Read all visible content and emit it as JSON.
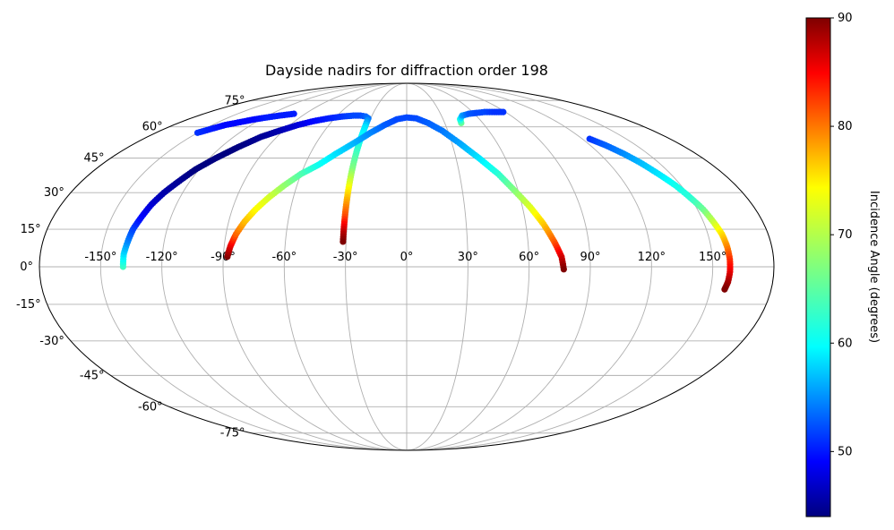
{
  "chart_data": {
    "type": "scatter",
    "projection": "mollweide",
    "title": "Dayside nadirs for diffraction order 198",
    "x_tick_labels": [
      "-150°",
      "-120°",
      "-90°",
      "-60°",
      "-30°",
      "0°",
      "30°",
      "60°",
      "90°",
      "120°",
      "150°"
    ],
    "x_tick_values": [
      -150,
      -120,
      -90,
      -60,
      -30,
      0,
      30,
      60,
      90,
      120,
      150
    ],
    "y_tick_labels": [
      "-75°",
      "-60°",
      "-45°",
      "-30°",
      "-15°",
      "0°",
      "15°",
      "30°",
      "45°",
      "60°",
      "75°"
    ],
    "y_tick_values": [
      -75,
      -60,
      -45,
      -30,
      -15,
      0,
      15,
      30,
      45,
      60,
      75
    ],
    "grid": true,
    "colorbar": {
      "label": "Incidence Angle (degrees)",
      "range": [
        44,
        90
      ],
      "tick_labels": [
        "50",
        "60",
        "70",
        "80",
        "90"
      ],
      "tick_values": [
        50,
        60,
        70,
        80,
        90
      ],
      "colormap": "jet"
    },
    "tracks": [
      {
        "points": [
          [
            -139,
            0,
            64
          ],
          [
            -139,
            5,
            60
          ],
          [
            -138,
            10,
            56
          ],
          [
            -137,
            15,
            53
          ],
          [
            -135,
            20,
            50
          ],
          [
            -133,
            25,
            48
          ],
          [
            -130,
            30,
            46
          ],
          [
            -126,
            35,
            45
          ],
          [
            -122,
            40,
            44
          ],
          [
            -116,
            45,
            44
          ],
          [
            -109,
            50,
            44
          ],
          [
            -101,
            55,
            45
          ],
          [
            -93,
            58,
            46
          ],
          [
            -84,
            61,
            48
          ],
          [
            -75,
            63,
            50
          ],
          [
            -65,
            64.5,
            51
          ],
          [
            -55,
            65.5,
            52
          ],
          [
            -46,
            66,
            53
          ],
          [
            -40,
            66,
            53
          ],
          [
            -35,
            65.5,
            54
          ],
          [
            -32,
            64.5,
            55
          ],
          [
            -31.5,
            60,
            60
          ],
          [
            -31.5,
            50,
            63
          ],
          [
            -31.5,
            40,
            67
          ],
          [
            -31.5,
            30,
            74
          ],
          [
            -31.5,
            20,
            81
          ],
          [
            -31.5,
            14,
            87
          ],
          [
            -31.5,
            10,
            90
          ]
        ]
      },
      {
        "points": [
          [
            -88,
            4,
            90
          ],
          [
            -87,
            8,
            86
          ],
          [
            -85,
            13,
            80
          ],
          [
            -82,
            18,
            76
          ],
          [
            -78,
            23,
            73
          ],
          [
            -73,
            28,
            71
          ],
          [
            -67,
            33,
            68
          ],
          [
            -60,
            38,
            65
          ],
          [
            -52,
            42,
            62
          ],
          [
            -44,
            47,
            60
          ],
          [
            -35,
            52,
            58
          ],
          [
            -26,
            57,
            56
          ],
          [
            -17,
            61,
            54
          ],
          [
            -8,
            64,
            53
          ],
          [
            0,
            65,
            53
          ],
          [
            8,
            64.5,
            53
          ],
          [
            17,
            62,
            54
          ],
          [
            26,
            58,
            55
          ],
          [
            35,
            52,
            57
          ],
          [
            44,
            45,
            60
          ],
          [
            52,
            38,
            63
          ],
          [
            58,
            31,
            67
          ],
          [
            64,
            24,
            71
          ],
          [
            69,
            17,
            75
          ],
          [
            73,
            10,
            80
          ],
          [
            76,
            4,
            86
          ],
          [
            77,
            -1,
            90
          ]
        ]
      },
      {
        "points": [
          [
            43,
            62,
            66
          ],
          [
            44,
            64,
            62
          ],
          [
            48,
            66,
            57
          ],
          [
            55,
            67,
            54
          ],
          [
            63,
            67.5,
            53
          ],
          [
            71,
            68,
            53
          ],
          [
            80,
            68,
            52
          ],
          [
            88,
            68,
            52
          ]
        ]
      },
      {
        "points": [
          [
            -150,
            57,
            52
          ],
          [
            -145,
            59,
            51
          ],
          [
            -140,
            61,
            50
          ],
          [
            -135,
            62,
            50
          ],
          [
            -130,
            63,
            50
          ],
          [
            -125,
            64,
            50
          ],
          [
            -118,
            65,
            51
          ],
          [
            -110,
            66,
            51
          ],
          [
            -100,
            67,
            51
          ]
        ]
      },
      {
        "points": [
          [
            125,
            54,
            52
          ],
          [
            130,
            51,
            54
          ],
          [
            135,
            47,
            56
          ],
          [
            139,
            43,
            58
          ],
          [
            143,
            38,
            60
          ],
          [
            147,
            33,
            62
          ],
          [
            150,
            28,
            63
          ],
          [
            153,
            23,
            66
          ],
          [
            155,
            18,
            70
          ],
          [
            157,
            13,
            74
          ],
          [
            158,
            8,
            78
          ],
          [
            158.5,
            3,
            82
          ],
          [
            158.5,
            -2,
            85
          ],
          [
            158,
            -6,
            88
          ],
          [
            157,
            -9,
            90
          ]
        ]
      }
    ]
  }
}
